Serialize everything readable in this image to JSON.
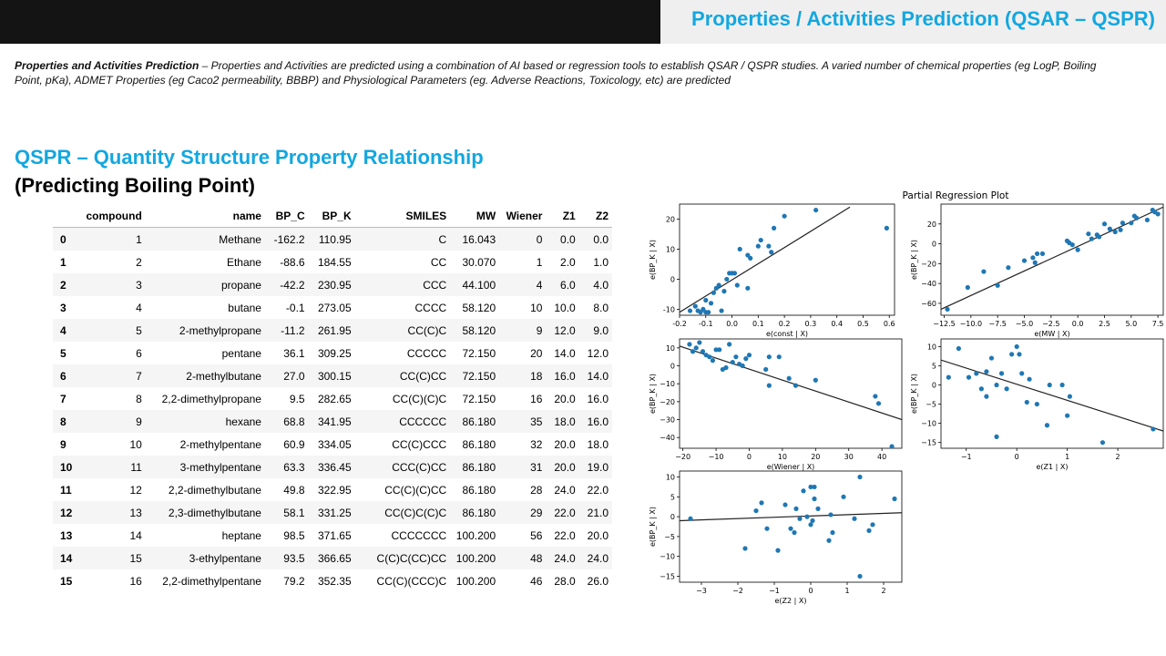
{
  "header": {
    "title": "Properties / Activities Prediction (QSAR – QSPR)"
  },
  "description": {
    "bold": "Properties  and Activities Prediction",
    "rest": " – Properties and Activities are predicted using a combination of AI based or regression tools to establish QSAR /  QSPR studies. A varied number of chemical properties (eg LogP, Boiling Point, pKa), ADMET Properties (eg Caco2 permeability, BBBP) and Physiological Parameters (eg. Adverse Reactions, Toxicology, etc) are predicted"
  },
  "section": {
    "heading": "QSPR – Quantity Structure Property Relationship",
    "subheading": "(Predicting Boiling Point)"
  },
  "table": {
    "columns": [
      "",
      "compound",
      "name",
      "BP_C",
      "BP_K",
      "SMILES",
      "MW",
      "Wiener",
      "Z1",
      "Z2"
    ],
    "rows": [
      [
        "0",
        "1",
        "Methane",
        "-162.2",
        "110.95",
        "C",
        "16.043",
        "0",
        "0.0",
        "0.0"
      ],
      [
        "1",
        "2",
        "Ethane",
        "-88.6",
        "184.55",
        "CC",
        "30.070",
        "1",
        "2.0",
        "1.0"
      ],
      [
        "2",
        "3",
        "propane",
        "-42.2",
        "230.95",
        "CCC",
        "44.100",
        "4",
        "6.0",
        "4.0"
      ],
      [
        "3",
        "4",
        "butane",
        "-0.1",
        "273.05",
        "CCCC",
        "58.120",
        "10",
        "10.0",
        "8.0"
      ],
      [
        "4",
        "5",
        "2-methylpropane",
        "-11.2",
        "261.95",
        "CC(C)C",
        "58.120",
        "9",
        "12.0",
        "9.0"
      ],
      [
        "5",
        "6",
        "pentane",
        "36.1",
        "309.25",
        "CCCCC",
        "72.150",
        "20",
        "14.0",
        "12.0"
      ],
      [
        "6",
        "7",
        "2-methylbutane",
        "27.0",
        "300.15",
        "CC(C)CC",
        "72.150",
        "18",
        "16.0",
        "14.0"
      ],
      [
        "7",
        "8",
        "2,2-dimethylpropane",
        "9.5",
        "282.65",
        "CC(C)(C)C",
        "72.150",
        "16",
        "20.0",
        "16.0"
      ],
      [
        "8",
        "9",
        "hexane",
        "68.8",
        "341.95",
        "CCCCCC",
        "86.180",
        "35",
        "18.0",
        "16.0"
      ],
      [
        "9",
        "10",
        "2-methylpentane",
        "60.9",
        "334.05",
        "CC(C)CCC",
        "86.180",
        "32",
        "20.0",
        "18.0"
      ],
      [
        "10",
        "11",
        "3-methylpentane",
        "63.3",
        "336.45",
        "CCC(C)CC",
        "86.180",
        "31",
        "20.0",
        "19.0"
      ],
      [
        "11",
        "12",
        "2,2-dimethylbutane",
        "49.8",
        "322.95",
        "CC(C)(C)CC",
        "86.180",
        "28",
        "24.0",
        "22.0"
      ],
      [
        "12",
        "13",
        "2,3-dimethylbutane",
        "58.1",
        "331.25",
        "CC(C)C(C)C",
        "86.180",
        "29",
        "22.0",
        "21.0"
      ],
      [
        "13",
        "14",
        "heptane",
        "98.5",
        "371.65",
        "CCCCCCC",
        "100.200",
        "56",
        "22.0",
        "20.0"
      ],
      [
        "14",
        "15",
        "3-ethylpentane",
        "93.5",
        "366.65",
        "C(C)C(CC)CC",
        "100.200",
        "48",
        "24.0",
        "24.0"
      ],
      [
        "15",
        "16",
        "2,2-dimethylpentane",
        "79.2",
        "352.35",
        "CC(C)(CCC)C",
        "100.200",
        "46",
        "28.0",
        "26.0"
      ]
    ]
  },
  "chart_data": {
    "type": "scatter",
    "title": "Partial Regression Plot",
    "point_color": "#1f77b4",
    "line_color": "#222222",
    "panels": [
      {
        "xlabel": "e(const | X)",
        "ylabel": "e(BP_K | X)",
        "xlim": [
          -0.2,
          0.62
        ],
        "ylim": [
          -12,
          25
        ],
        "xticks": [
          "-0.2",
          "-0.1",
          "0.0",
          "0.1",
          "0.2",
          "0.3",
          "0.4",
          "0.5",
          "0.6"
        ],
        "xtickvals": [
          -0.2,
          -0.1,
          0,
          0.1,
          0.2,
          0.3,
          0.4,
          0.5,
          0.6
        ],
        "yticks": [
          "-10",
          "0",
          "10",
          "20"
        ],
        "ytickvals": [
          -10,
          0,
          10,
          20
        ],
        "fit": [
          [
            -0.2,
            -11
          ],
          [
            0.45,
            24
          ]
        ],
        "points": [
          [
            -0.16,
            -10.5
          ],
          [
            -0.14,
            -9
          ],
          [
            -0.13,
            -10.5
          ],
          [
            -0.12,
            -11
          ],
          [
            -0.11,
            -10
          ],
          [
            -0.1,
            -11
          ],
          [
            -0.09,
            -11
          ],
          [
            -0.1,
            -7
          ],
          [
            -0.08,
            -8
          ],
          [
            -0.07,
            -4.5
          ],
          [
            -0.06,
            -3
          ],
          [
            -0.05,
            -2
          ],
          [
            -0.04,
            -10.5
          ],
          [
            -0.03,
            -4
          ],
          [
            -0.02,
            0
          ],
          [
            -0.01,
            2
          ],
          [
            0,
            2
          ],
          [
            0.01,
            2
          ],
          [
            0.02,
            -2
          ],
          [
            0.03,
            10
          ],
          [
            0.06,
            -3
          ],
          [
            0.06,
            8
          ],
          [
            0.07,
            7
          ],
          [
            0.1,
            11
          ],
          [
            0.11,
            13
          ],
          [
            0.14,
            11
          ],
          [
            0.15,
            9
          ],
          [
            0.16,
            17
          ],
          [
            0.2,
            21
          ],
          [
            0.32,
            23
          ],
          [
            0.59,
            17
          ]
        ]
      },
      {
        "xlabel": "e(MW | X)",
        "ylabel": "e(BP_K | X)",
        "xlim": [
          -12.8,
          8
        ],
        "ylim": [
          -72,
          40
        ],
        "xticks": [
          "−12.5",
          "−10.0",
          "−7.5",
          "−5.0",
          "−2.5",
          "0.0",
          "2.5",
          "5.0",
          "7.5"
        ],
        "xtickvals": [
          -12.5,
          -10,
          -7.5,
          -5,
          -2.5,
          0,
          2.5,
          5,
          7.5
        ],
        "yticks": [
          "−60",
          "−40",
          "−20",
          "0",
          "20"
        ],
        "ytickvals": [
          -60,
          -40,
          -20,
          0,
          20
        ],
        "fit": [
          [
            -12.8,
            -66
          ],
          [
            8,
            37
          ]
        ],
        "points": [
          [
            -12.2,
            -66
          ],
          [
            -10.3,
            -44
          ],
          [
            -8.8,
            -28
          ],
          [
            -7.5,
            -42
          ],
          [
            -6.5,
            -24
          ],
          [
            -5,
            -17
          ],
          [
            -4.2,
            -14
          ],
          [
            -4,
            -19
          ],
          [
            -3.8,
            -10
          ],
          [
            -3.3,
            -10
          ],
          [
            -1,
            3
          ],
          [
            -0.8,
            1
          ],
          [
            -0.5,
            -1
          ],
          [
            0,
            -6
          ],
          [
            1,
            10
          ],
          [
            1.3,
            5
          ],
          [
            1.8,
            9
          ],
          [
            2,
            7
          ],
          [
            2.5,
            20
          ],
          [
            3,
            15
          ],
          [
            3.5,
            12
          ],
          [
            4,
            14
          ],
          [
            4.2,
            21
          ],
          [
            5,
            21
          ],
          [
            5.3,
            28
          ],
          [
            5.5,
            26
          ],
          [
            6.5,
            24
          ],
          [
            7,
            34
          ],
          [
            7.2,
            32
          ],
          [
            7.5,
            30
          ]
        ]
      },
      {
        "xlabel": "e(Wiener | X)",
        "ylabel": "e(BP_K | X)",
        "xlim": [
          -21,
          46
        ],
        "ylim": [
          -46,
          15
        ],
        "xticks": [
          "−20",
          "−10",
          "0",
          "10",
          "20",
          "30",
          "40"
        ],
        "xtickvals": [
          -20,
          -10,
          0,
          10,
          20,
          30,
          40
        ],
        "yticks": [
          "−40",
          "−30",
          "−20",
          "−10",
          "0",
          "10"
        ],
        "ytickvals": [
          -40,
          -30,
          -20,
          -10,
          0,
          10
        ],
        "fit": [
          [
            -21,
            11
          ],
          [
            46,
            -30
          ]
        ],
        "points": [
          [
            -18,
            12
          ],
          [
            -17,
            8
          ],
          [
            -16,
            10
          ],
          [
            -15,
            13
          ],
          [
            -14,
            8
          ],
          [
            -13,
            6
          ],
          [
            -12,
            5
          ],
          [
            -11,
            3
          ],
          [
            -10,
            9
          ],
          [
            -9,
            9
          ],
          [
            -8,
            -2
          ],
          [
            -7,
            -1
          ],
          [
            -6,
            12
          ],
          [
            -5,
            2
          ],
          [
            -4,
            5
          ],
          [
            -3,
            1
          ],
          [
            -2,
            0
          ],
          [
            -1,
            4
          ],
          [
            0,
            6
          ],
          [
            5,
            -2
          ],
          [
            6,
            -11
          ],
          [
            6,
            5
          ],
          [
            9,
            5
          ],
          [
            12,
            -7
          ],
          [
            14,
            -11
          ],
          [
            20,
            -8
          ],
          [
            38,
            -17
          ],
          [
            39,
            -21
          ],
          [
            43,
            -45
          ]
        ]
      },
      {
        "xlabel": "e(Z1 | X)",
        "ylabel": "e(BP_K | X)",
        "xlim": [
          -1.5,
          2.9
        ],
        "ylim": [
          -16.5,
          12
        ],
        "xticks": [
          "−1",
          "0",
          "1",
          "2"
        ],
        "xtickvals": [
          -1,
          0,
          1,
          2
        ],
        "yticks": [
          "−15",
          "−10",
          "−5",
          "0",
          "5",
          "10"
        ],
        "ytickvals": [
          -15,
          -10,
          -5,
          0,
          5,
          10
        ],
        "fit": [
          [
            -1.5,
            6.5
          ],
          [
            2.9,
            -12
          ]
        ],
        "points": [
          [
            -1.35,
            2
          ],
          [
            -1.15,
            9.5
          ],
          [
            -0.95,
            2
          ],
          [
            -0.8,
            3
          ],
          [
            -0.7,
            -1
          ],
          [
            -0.6,
            3.5
          ],
          [
            -0.6,
            -3
          ],
          [
            -0.5,
            7
          ],
          [
            -0.4,
            0
          ],
          [
            -0.4,
            -13.5
          ],
          [
            -0.3,
            3
          ],
          [
            -0.2,
            -1
          ],
          [
            -0.1,
            8
          ],
          [
            0,
            10
          ],
          [
            0.05,
            8
          ],
          [
            0.1,
            3
          ],
          [
            0.2,
            -4.5
          ],
          [
            0.25,
            1.5
          ],
          [
            0.4,
            -5
          ],
          [
            0.6,
            -10.5
          ],
          [
            0.65,
            0
          ],
          [
            0.9,
            0
          ],
          [
            1.0,
            -8
          ],
          [
            1.05,
            -3
          ],
          [
            1.7,
            -15
          ],
          [
            2.7,
            -11.5
          ]
        ]
      },
      {
        "xlabel": "e(Z2 | X)",
        "ylabel": "e(BP_K | X)",
        "xlim": [
          -3.6,
          2.5
        ],
        "ylim": [
          -16.5,
          11.5
        ],
        "xticks": [
          "−3",
          "−2",
          "−1",
          "0",
          "1",
          "2"
        ],
        "xtickvals": [
          -3,
          -2,
          -1,
          0,
          1,
          2
        ],
        "yticks": [
          "−15",
          "−10",
          "−5",
          "0",
          "5",
          "10"
        ],
        "ytickvals": [
          -15,
          -10,
          -5,
          0,
          5,
          10
        ],
        "fit": [
          [
            -3.6,
            -1
          ],
          [
            2.5,
            1
          ]
        ],
        "points": [
          [
            -3.3,
            -0.5
          ],
          [
            -1.8,
            -8
          ],
          [
            -1.5,
            1.5
          ],
          [
            -1.35,
            3.5
          ],
          [
            -1.2,
            -3
          ],
          [
            -0.9,
            -8.5
          ],
          [
            -0.7,
            3
          ],
          [
            -0.55,
            -3
          ],
          [
            -0.45,
            -4
          ],
          [
            -0.4,
            2
          ],
          [
            -0.3,
            -0.5
          ],
          [
            -0.2,
            6.5
          ],
          [
            -0.1,
            0
          ],
          [
            0,
            7.5
          ],
          [
            0,
            -2
          ],
          [
            0.05,
            -1
          ],
          [
            0.1,
            7.5
          ],
          [
            0.1,
            4.5
          ],
          [
            0.2,
            2
          ],
          [
            0.5,
            -6
          ],
          [
            0.55,
            0.5
          ],
          [
            0.6,
            -4
          ],
          [
            0.9,
            5
          ],
          [
            1.2,
            -0.5
          ],
          [
            1.35,
            10
          ],
          [
            1.35,
            -15
          ],
          [
            1.6,
            -3.5
          ],
          [
            1.7,
            -2
          ],
          [
            2.3,
            4.5
          ]
        ]
      }
    ]
  }
}
